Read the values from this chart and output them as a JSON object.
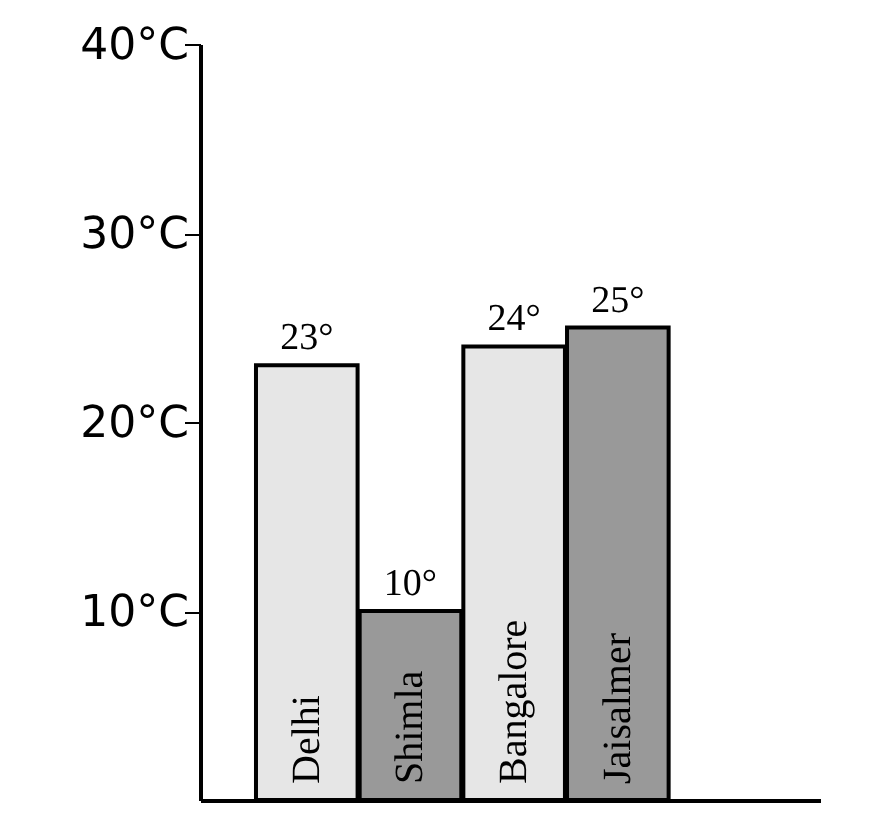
{
  "chart_data": {
    "type": "bar",
    "categories": [
      "Delhi",
      "Shimla",
      "Bangalore",
      "Jaisalmer"
    ],
    "values": [
      23,
      10,
      24,
      25
    ],
    "colors": [
      "#e6e6e6",
      "#999999",
      "#e6e6e6",
      "#999999"
    ],
    "value_labels": [
      "23°",
      "10°",
      "24°",
      "25°"
    ],
    "ylim": [
      0,
      40
    ],
    "yticks": [
      {
        "value": 10,
        "label": "10°C"
      },
      {
        "value": 20,
        "label": "20°C"
      },
      {
        "value": 30,
        "label": "30°C"
      },
      {
        "value": 40,
        "label": "40°C"
      }
    ],
    "grid": false
  }
}
